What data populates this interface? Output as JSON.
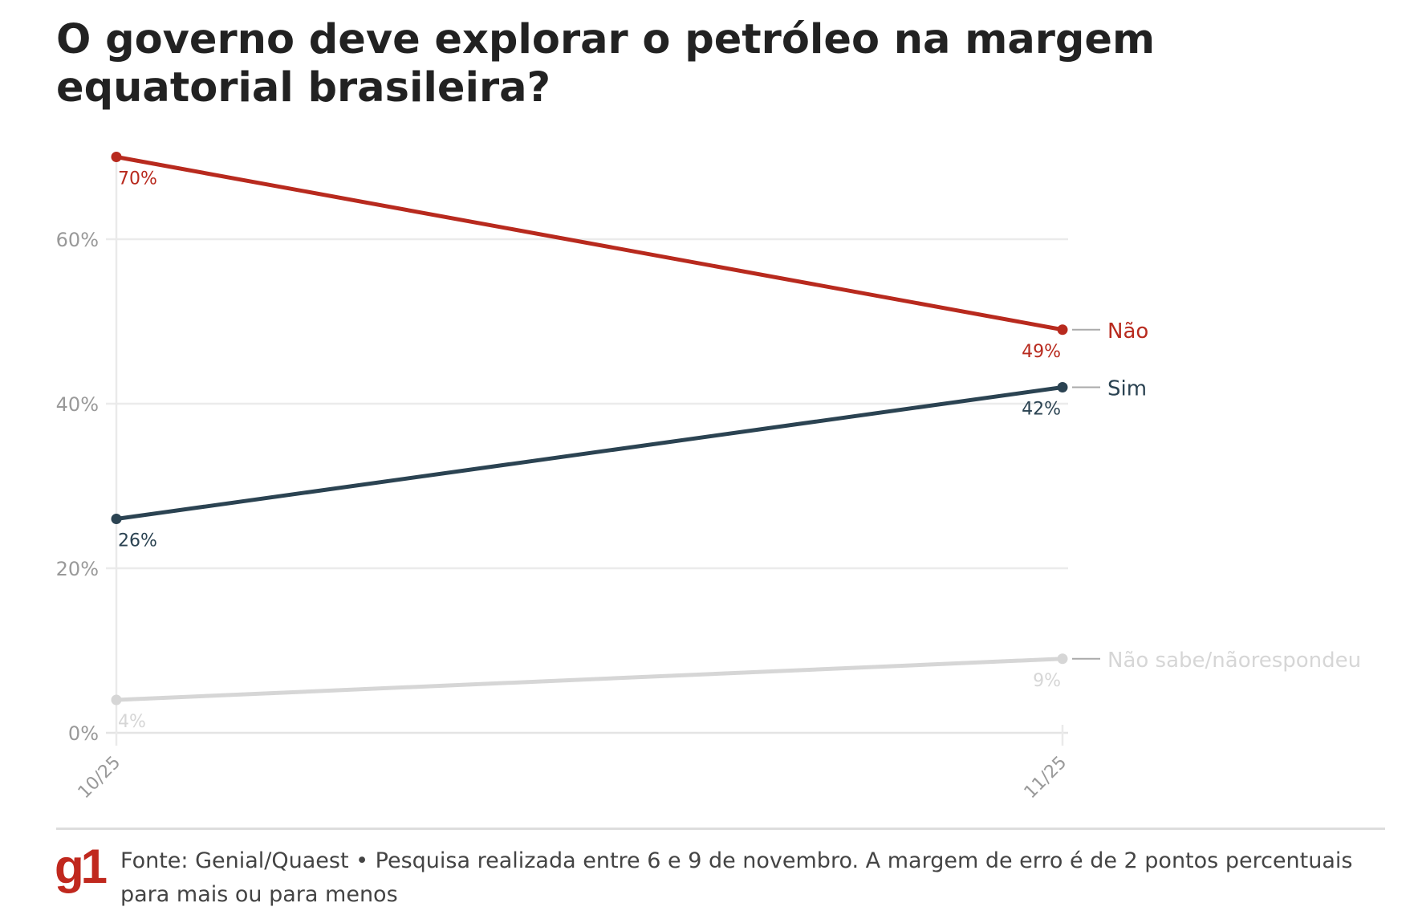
{
  "title": "O governo deve explorar o petróleo na margem equatorial brasileira?",
  "source": "Fonte: Genial/Quaest • Pesquisa realizada entre 6 e 9 de novembro. A margem de erro é de 2 pontos percentuais para mais ou para menos",
  "logo": "g1",
  "chart_data": {
    "type": "line",
    "title": "O governo deve explorar o petróleo na margem equatorial brasileira?",
    "x": [
      "10/25",
      "11/25"
    ],
    "y_ticks": [
      0,
      20,
      40,
      60
    ],
    "y_tick_labels": [
      "0%",
      "20%",
      "40%",
      "60%"
    ],
    "ylim": [
      0,
      70
    ],
    "grid": true,
    "legend": "direct labels at line ends (right)",
    "series": [
      {
        "name": "Não",
        "values": [
          70,
          49
        ],
        "labels": [
          "70%",
          "49%"
        ],
        "color": "#b82a1e"
      },
      {
        "name": "Sim",
        "values": [
          26,
          42
        ],
        "labels": [
          "26%",
          "42%"
        ],
        "color": "#2b4352"
      },
      {
        "name": "Não sabe/nãorespondeu",
        "values": [
          4,
          9
        ],
        "labels": [
          "4%",
          "9%"
        ],
        "color": "#d6d6d6"
      }
    ]
  }
}
